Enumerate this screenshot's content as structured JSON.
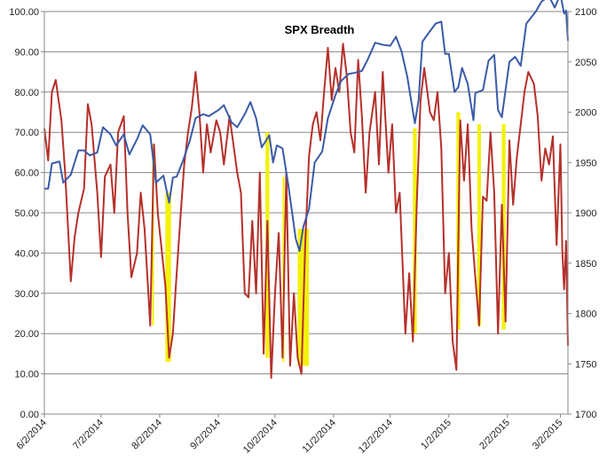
{
  "chart_data": {
    "type": "line",
    "title": "SPX Breadth",
    "x_tick_labels": [
      "6/2/2014",
      "7/2/2014",
      "8/2/2014",
      "9/2/2014",
      "10/2/2014",
      "11/2/2014",
      "12/2/2014",
      "1/2/2015",
      "2/2/2015",
      "3/2/2015"
    ],
    "x_tick_dates": [
      "2014-06-02",
      "2014-07-02",
      "2014-08-02",
      "2014-09-02",
      "2014-10-02",
      "2014-11-02",
      "2014-12-02",
      "2015-01-02",
      "2015-02-02",
      "2015-03-02"
    ],
    "x_range": [
      "2014-06-02",
      "2015-03-06"
    ],
    "y_left": {
      "min": 0,
      "max": 100,
      "step": 10,
      "tick_labels": [
        "0.00",
        "10.00",
        "20.00",
        "30.00",
        "40.00",
        "50.00",
        "60.00",
        "70.00",
        "80.00",
        "90.00",
        "100.00"
      ]
    },
    "y_right": {
      "min": 1700,
      "max": 2100,
      "step": 50,
      "tick_labels": [
        "1700",
        "1750",
        "1800",
        "1850",
        "1900",
        "1950",
        "2000",
        "2050",
        "2100"
      ]
    },
    "grid": true,
    "legend": "none",
    "colors": {
      "breadth": "#b5302a",
      "spx": "#3a5ba8",
      "highlight": "#f2f20c",
      "grid": "#888888"
    },
    "series": [
      {
        "axis": "left",
        "color": "#b5302a",
        "points": [
          [
            "2014-06-02",
            71
          ],
          [
            "2014-06-04",
            63
          ],
          [
            "2014-06-06",
            80
          ],
          [
            "2014-06-08",
            83
          ],
          [
            "2014-06-11",
            73
          ],
          [
            "2014-06-13",
            60
          ],
          [
            "2014-06-16",
            33
          ],
          [
            "2014-06-18",
            44
          ],
          [
            "2014-06-20",
            50
          ],
          [
            "2014-06-23",
            56
          ],
          [
            "2014-06-25",
            77
          ],
          [
            "2014-06-27",
            72
          ],
          [
            "2014-06-30",
            55
          ],
          [
            "2014-07-02",
            39
          ],
          [
            "2014-07-04",
            59
          ],
          [
            "2014-07-07",
            62
          ],
          [
            "2014-07-09",
            50
          ],
          [
            "2014-07-11",
            70
          ],
          [
            "2014-07-14",
            74
          ],
          [
            "2014-07-16",
            50
          ],
          [
            "2014-07-18",
            34
          ],
          [
            "2014-07-21",
            40
          ],
          [
            "2014-07-23",
            55
          ],
          [
            "2014-07-25",
            46
          ],
          [
            "2014-07-28",
            22
          ],
          [
            "2014-07-30",
            67
          ],
          [
            "2014-08-01",
            50
          ],
          [
            "2014-08-03",
            41
          ],
          [
            "2014-08-05",
            32
          ],
          [
            "2014-08-07",
            14
          ],
          [
            "2014-08-09",
            20
          ],
          [
            "2014-08-11",
            35
          ],
          [
            "2014-08-13",
            49
          ],
          [
            "2014-08-15",
            62
          ],
          [
            "2014-08-17",
            70
          ],
          [
            "2014-08-19",
            76
          ],
          [
            "2014-08-21",
            85
          ],
          [
            "2014-08-23",
            75
          ],
          [
            "2014-08-25",
            60
          ],
          [
            "2014-08-27",
            72
          ],
          [
            "2014-08-29",
            65
          ],
          [
            "2014-09-01",
            73
          ],
          [
            "2014-09-03",
            70
          ],
          [
            "2014-09-05",
            62
          ],
          [
            "2014-09-08",
            74
          ],
          [
            "2014-09-10",
            67
          ],
          [
            "2014-09-12",
            60
          ],
          [
            "2014-09-14",
            55
          ],
          [
            "2014-09-16",
            30
          ],
          [
            "2014-09-18",
            29
          ],
          [
            "2014-09-20",
            48
          ],
          [
            "2014-09-22",
            30
          ],
          [
            "2014-09-24",
            60
          ],
          [
            "2014-09-26",
            15
          ],
          [
            "2014-09-28",
            48
          ],
          [
            "2014-09-30",
            9
          ],
          [
            "2014-10-02",
            30
          ],
          [
            "2014-10-04",
            45
          ],
          [
            "2014-10-06",
            14
          ],
          [
            "2014-10-08",
            60
          ],
          [
            "2014-10-10",
            12
          ],
          [
            "2014-10-12",
            30
          ],
          [
            "2014-10-14",
            14
          ],
          [
            "2014-10-16",
            10
          ],
          [
            "2014-10-18",
            42
          ],
          [
            "2014-10-20",
            64
          ],
          [
            "2014-10-22",
            72
          ],
          [
            "2014-10-24",
            75
          ],
          [
            "2014-10-26",
            68
          ],
          [
            "2014-10-28",
            80
          ],
          [
            "2014-10-30",
            91
          ],
          [
            "2014-11-01",
            78
          ],
          [
            "2014-11-03",
            86
          ],
          [
            "2014-11-05",
            80
          ],
          [
            "2014-11-07",
            92
          ],
          [
            "2014-11-09",
            84
          ],
          [
            "2014-11-11",
            70
          ],
          [
            "2014-11-13",
            65
          ],
          [
            "2014-11-15",
            88
          ],
          [
            "2014-11-17",
            74
          ],
          [
            "2014-11-19",
            55
          ],
          [
            "2014-11-21",
            70
          ],
          [
            "2014-11-24",
            80
          ],
          [
            "2014-11-26",
            62
          ],
          [
            "2014-11-28",
            85
          ],
          [
            "2014-12-01",
            60
          ],
          [
            "2014-12-03",
            72
          ],
          [
            "2014-12-05",
            50
          ],
          [
            "2014-12-07",
            55
          ],
          [
            "2014-12-10",
            20
          ],
          [
            "2014-12-12",
            35
          ],
          [
            "2014-12-14",
            18
          ],
          [
            "2014-12-16",
            52
          ],
          [
            "2014-12-18",
            78
          ],
          [
            "2014-12-20",
            86
          ],
          [
            "2014-12-23",
            75
          ],
          [
            "2014-12-25",
            73
          ],
          [
            "2014-12-27",
            80
          ],
          [
            "2014-12-29",
            66
          ],
          [
            "2014-12-31",
            30
          ],
          [
            "2015-01-02",
            40
          ],
          [
            "2015-01-04",
            18
          ],
          [
            "2015-01-06",
            11
          ],
          [
            "2015-01-08",
            73
          ],
          [
            "2015-01-10",
            58
          ],
          [
            "2015-01-12",
            72
          ],
          [
            "2015-01-14",
            46
          ],
          [
            "2015-01-16",
            34
          ],
          [
            "2015-01-18",
            22
          ],
          [
            "2015-01-20",
            54
          ],
          [
            "2015-01-22",
            53
          ],
          [
            "2015-01-24",
            70
          ],
          [
            "2015-01-26",
            55
          ],
          [
            "2015-01-28",
            20
          ],
          [
            "2015-01-30",
            52
          ],
          [
            "2015-02-01",
            23
          ],
          [
            "2015-02-03",
            68
          ],
          [
            "2015-02-05",
            52
          ],
          [
            "2015-02-07",
            64
          ],
          [
            "2015-02-09",
            72
          ],
          [
            "2015-02-11",
            80
          ],
          [
            "2015-02-13",
            85
          ],
          [
            "2015-02-16",
            82
          ],
          [
            "2015-02-18",
            74
          ],
          [
            "2015-02-20",
            58
          ],
          [
            "2015-02-22",
            66
          ],
          [
            "2015-02-24",
            62
          ],
          [
            "2015-02-26",
            69
          ],
          [
            "2015-02-28",
            42
          ],
          [
            "2015-03-02",
            67
          ],
          [
            "2015-03-03",
            41
          ],
          [
            "2015-03-04",
            31
          ],
          [
            "2015-03-05",
            43
          ],
          [
            "2015-03-06",
            17
          ]
        ]
      },
      {
        "axis": "right",
        "color": "#3a5ba8",
        "points": [
          [
            "2014-06-02",
            1924
          ],
          [
            "2014-06-04",
            1924
          ],
          [
            "2014-06-06",
            1949
          ],
          [
            "2014-06-10",
            1951
          ],
          [
            "2014-06-12",
            1930
          ],
          [
            "2014-06-16",
            1938
          ],
          [
            "2014-06-20",
            1962
          ],
          [
            "2014-06-23",
            1962
          ],
          [
            "2014-06-26",
            1957
          ],
          [
            "2014-06-30",
            1960
          ],
          [
            "2014-07-03",
            1985
          ],
          [
            "2014-07-07",
            1978
          ],
          [
            "2014-07-10",
            1967
          ],
          [
            "2014-07-14",
            1978
          ],
          [
            "2014-07-17",
            1958
          ],
          [
            "2014-07-21",
            1973
          ],
          [
            "2014-07-24",
            1987
          ],
          [
            "2014-07-28",
            1978
          ],
          [
            "2014-07-31",
            1930
          ],
          [
            "2014-08-04",
            1937
          ],
          [
            "2014-08-07",
            1910
          ],
          [
            "2014-08-09",
            1935
          ],
          [
            "2014-08-11",
            1936
          ],
          [
            "2014-08-14",
            1950
          ],
          [
            "2014-08-18",
            1972
          ],
          [
            "2014-08-21",
            1994
          ],
          [
            "2014-08-25",
            1998
          ],
          [
            "2014-08-28",
            1996
          ],
          [
            "2014-09-02",
            2002
          ],
          [
            "2014-09-05",
            2007
          ],
          [
            "2014-09-09",
            1990
          ],
          [
            "2014-09-12",
            1985
          ],
          [
            "2014-09-16",
            1998
          ],
          [
            "2014-09-19",
            2010
          ],
          [
            "2014-09-22",
            1994
          ],
          [
            "2014-09-25",
            1965
          ],
          [
            "2014-09-29",
            1977
          ],
          [
            "2014-10-01",
            1950
          ],
          [
            "2014-10-03",
            1967
          ],
          [
            "2014-10-06",
            1964
          ],
          [
            "2014-10-09",
            1928
          ],
          [
            "2014-10-13",
            1874
          ],
          [
            "2014-10-15",
            1862
          ],
          [
            "2014-10-17",
            1886
          ],
          [
            "2014-10-20",
            1904
          ],
          [
            "2014-10-23",
            1950
          ],
          [
            "2014-10-27",
            1961
          ],
          [
            "2014-10-30",
            1994
          ],
          [
            "2014-11-03",
            2017
          ],
          [
            "2014-11-06",
            2031
          ],
          [
            "2014-11-10",
            2038
          ],
          [
            "2014-11-13",
            2039
          ],
          [
            "2014-11-17",
            2041
          ],
          [
            "2014-11-20",
            2052
          ],
          [
            "2014-11-24",
            2069
          ],
          [
            "2014-11-28",
            2067
          ],
          [
            "2014-12-02",
            2066
          ],
          [
            "2014-12-05",
            2075
          ],
          [
            "2014-12-08",
            2060
          ],
          [
            "2014-12-11",
            2035
          ],
          [
            "2014-12-15",
            1989
          ],
          [
            "2014-12-17",
            2012
          ],
          [
            "2014-12-19",
            2070
          ],
          [
            "2014-12-22",
            2078
          ],
          [
            "2014-12-26",
            2088
          ],
          [
            "2014-12-29",
            2090
          ],
          [
            "2014-12-31",
            2058
          ],
          [
            "2015-01-02",
            2058
          ],
          [
            "2015-01-05",
            2020
          ],
          [
            "2015-01-07",
            2025
          ],
          [
            "2015-01-09",
            2044
          ],
          [
            "2015-01-12",
            2028
          ],
          [
            "2015-01-15",
            1992
          ],
          [
            "2015-01-16",
            2019
          ],
          [
            "2015-01-20",
            2022
          ],
          [
            "2015-01-23",
            2051
          ],
          [
            "2015-01-26",
            2057
          ],
          [
            "2015-01-28",
            2002
          ],
          [
            "2015-01-30",
            1995
          ],
          [
            "2015-02-03",
            2050
          ],
          [
            "2015-02-06",
            2055
          ],
          [
            "2015-02-09",
            2046
          ],
          [
            "2015-02-12",
            2088
          ],
          [
            "2015-02-17",
            2100
          ],
          [
            "2015-02-20",
            2110
          ],
          [
            "2015-02-24",
            2115
          ],
          [
            "2015-02-27",
            2104
          ],
          [
            "2015-03-02",
            2117
          ],
          [
            "2015-03-04",
            2098
          ],
          [
            "2015-03-05",
            2101
          ],
          [
            "2015-03-06",
            2071
          ]
        ]
      }
    ],
    "highlights": [
      {
        "start": "2014-07-29",
        "end": "2014-07-30",
        "low": 22,
        "high": 67
      },
      {
        "start": "2014-08-05",
        "end": "2014-08-08",
        "low": 13,
        "high": 55
      },
      {
        "start": "2014-09-27",
        "end": "2014-09-29",
        "low": 14,
        "high": 70
      },
      {
        "start": "2014-10-06",
        "end": "2014-10-07",
        "low": 13,
        "high": 59
      },
      {
        "start": "2014-10-14",
        "end": "2014-10-20",
        "low": 12,
        "high": 46
      },
      {
        "start": "2014-12-14",
        "end": "2014-12-16",
        "low": 20,
        "high": 71
      },
      {
        "start": "2015-01-06",
        "end": "2015-01-08",
        "low": 21,
        "high": 75
      },
      {
        "start": "2015-01-17",
        "end": "2015-01-19",
        "low": 22,
        "high": 72
      },
      {
        "start": "2015-01-30",
        "end": "2015-02-01",
        "low": 21,
        "high": 72
      }
    ]
  }
}
